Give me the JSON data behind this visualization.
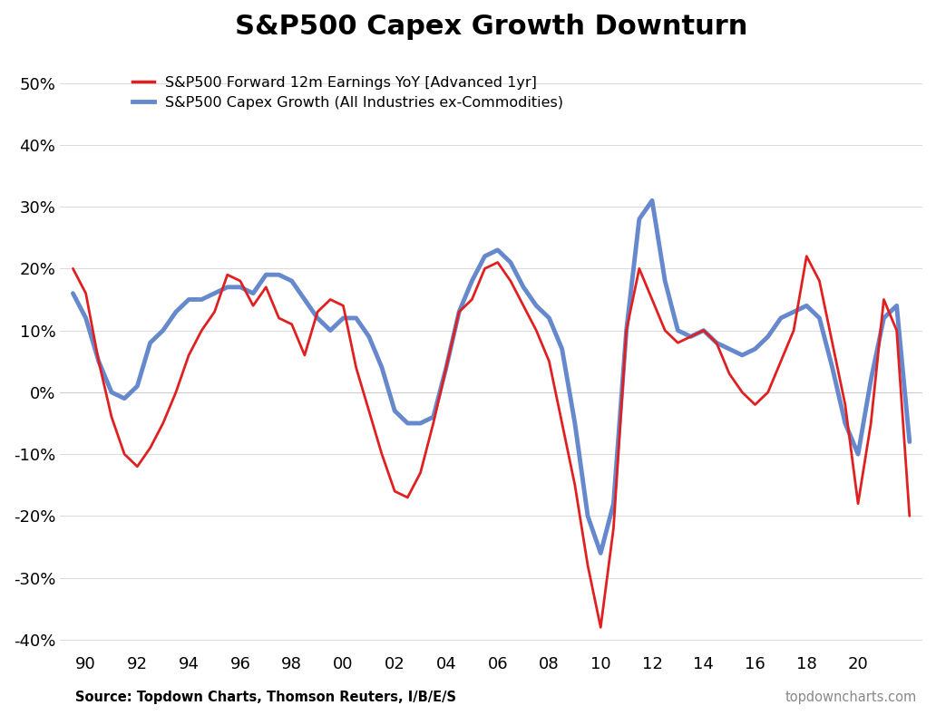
{
  "title": "S&P500 Capex Growth Downturn",
  "title_fontsize": 22,
  "title_fontweight": "bold",
  "legend_entries": [
    "S&P500 Forward 12m Earnings YoY [Advanced 1yr]",
    "S&P500 Capex Growth (All Industries ex-Commodities)"
  ],
  "red_color": "#e02020",
  "blue_color": "#6688cc",
  "source_left": "Source: Topdown Charts, Thomson Reuters, I/B/E/S",
  "source_right": "topdowncharts.com",
  "ylim": [
    -0.42,
    0.55
  ],
  "yticks": [
    -0.4,
    -0.3,
    -0.2,
    -0.1,
    0.0,
    0.1,
    0.2,
    0.3,
    0.4,
    0.5
  ],
  "xticks": [
    1990,
    1992,
    1994,
    1996,
    1998,
    2000,
    2002,
    2004,
    2006,
    2008,
    2010,
    2012,
    2014,
    2016,
    2018,
    2020
  ],
  "xlim": [
    1989.0,
    2022.5
  ],
  "red_x": [
    1989.5,
    1990.0,
    1990.5,
    1991.0,
    1991.5,
    1992.0,
    1992.5,
    1993.0,
    1993.5,
    1994.0,
    1994.5,
    1995.0,
    1995.5,
    1996.0,
    1996.5,
    1997.0,
    1997.5,
    1998.0,
    1998.5,
    1999.0,
    1999.5,
    2000.0,
    2000.5,
    2001.0,
    2001.5,
    2002.0,
    2002.5,
    2003.0,
    2003.5,
    2004.0,
    2004.5,
    2005.0,
    2005.5,
    2006.0,
    2006.5,
    2007.0,
    2007.5,
    2008.0,
    2008.5,
    2009.0,
    2009.5,
    2010.0,
    2010.5,
    2011.0,
    2011.5,
    2012.0,
    2012.5,
    2013.0,
    2013.5,
    2014.0,
    2014.5,
    2015.0,
    2015.5,
    2016.0,
    2016.5,
    2017.0,
    2017.5,
    2018.0,
    2018.5,
    2019.0,
    2019.5,
    2020.0,
    2020.5,
    2021.0,
    2021.5,
    2022.0
  ],
  "red_y": [
    0.2,
    0.16,
    0.05,
    -0.04,
    -0.1,
    -0.12,
    -0.09,
    -0.05,
    0.0,
    0.06,
    0.1,
    0.13,
    0.19,
    0.18,
    0.14,
    0.17,
    0.12,
    0.11,
    0.06,
    0.13,
    0.15,
    0.14,
    0.04,
    -0.03,
    -0.1,
    -0.16,
    -0.17,
    -0.13,
    -0.05,
    0.04,
    0.13,
    0.15,
    0.2,
    0.21,
    0.18,
    0.14,
    0.1,
    0.05,
    -0.05,
    -0.15,
    -0.28,
    -0.38,
    -0.22,
    0.1,
    0.2,
    0.15,
    0.1,
    0.08,
    0.09,
    0.1,
    0.08,
    0.03,
    0.0,
    -0.02,
    0.0,
    0.05,
    0.1,
    0.22,
    0.18,
    0.08,
    -0.02,
    -0.18,
    -0.05,
    0.15,
    0.1,
    -0.2
  ],
  "blue_x": [
    1989.5,
    1990.0,
    1990.5,
    1991.0,
    1991.5,
    1992.0,
    1992.5,
    1993.0,
    1993.5,
    1994.0,
    1994.5,
    1995.0,
    1995.5,
    1996.0,
    1996.5,
    1997.0,
    1997.5,
    1998.0,
    1998.5,
    1999.0,
    1999.5,
    2000.0,
    2000.5,
    2001.0,
    2001.5,
    2002.0,
    2002.5,
    2003.0,
    2003.5,
    2004.0,
    2004.5,
    2005.0,
    2005.5,
    2006.0,
    2006.5,
    2007.0,
    2007.5,
    2008.0,
    2008.5,
    2009.0,
    2009.5,
    2010.0,
    2010.5,
    2011.0,
    2011.5,
    2012.0,
    2012.5,
    2013.0,
    2013.5,
    2014.0,
    2014.5,
    2015.0,
    2015.5,
    2016.0,
    2016.5,
    2017.0,
    2017.5,
    2018.0,
    2018.5,
    2019.0,
    2019.5,
    2020.0,
    2020.5,
    2021.0,
    2021.5,
    2022.0
  ],
  "blue_y": [
    0.16,
    0.12,
    0.05,
    0.0,
    -0.01,
    0.01,
    0.08,
    0.1,
    0.13,
    0.15,
    0.15,
    0.16,
    0.17,
    0.17,
    0.16,
    0.19,
    0.19,
    0.18,
    0.15,
    0.12,
    0.1,
    0.12,
    0.12,
    0.09,
    0.04,
    -0.03,
    -0.05,
    -0.05,
    -0.04,
    0.04,
    0.13,
    0.18,
    0.22,
    0.23,
    0.21,
    0.17,
    0.14,
    0.12,
    0.07,
    -0.05,
    -0.2,
    -0.26,
    -0.18,
    0.1,
    0.28,
    0.31,
    0.18,
    0.1,
    0.09,
    0.1,
    0.08,
    0.07,
    0.06,
    0.07,
    0.09,
    0.12,
    0.13,
    0.14,
    0.12,
    0.04,
    -0.05,
    -0.1,
    0.02,
    0.12,
    0.14,
    -0.08
  ],
  "background_color": "#ffffff",
  "grid_color": "#cccccc",
  "red_linewidth": 2.0,
  "blue_linewidth": 3.5
}
